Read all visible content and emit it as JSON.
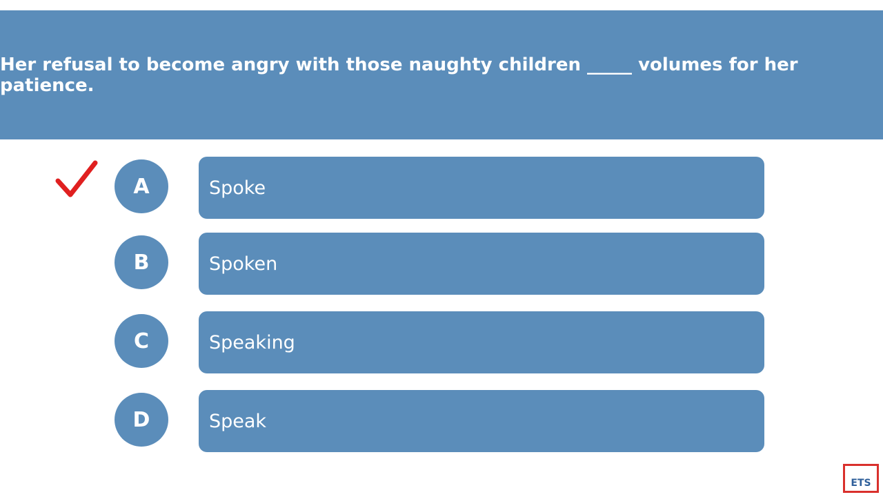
{
  "question": "Her refusal to become angry with those naughty children _____ volumes for her patience.",
  "options": [
    {
      "letter": "A",
      "text": "Spoke"
    },
    {
      "letter": "B",
      "text": "Spoken"
    },
    {
      "letter": "C",
      "text": "Speaking"
    },
    {
      "letter": "D",
      "text": "Speak"
    }
  ],
  "logo": "ETS"
}
